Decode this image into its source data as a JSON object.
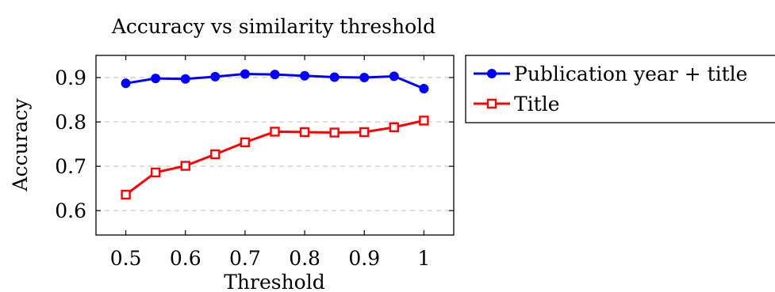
{
  "chart_data": {
    "type": "line",
    "title": "Accuracy vs similarity threshold",
    "xlabel": "Threshold",
    "ylabel": "Accuracy",
    "x": [
      0.5,
      0.55,
      0.6,
      0.65,
      0.7,
      0.75,
      0.8,
      0.85,
      0.9,
      0.95,
      1.0
    ],
    "xlim": [
      0.45,
      1.05
    ],
    "ylim": [
      0.545,
      0.95
    ],
    "xticks": [
      0.5,
      0.6,
      0.7,
      0.8,
      0.9,
      1.0
    ],
    "xtick_labels": [
      "0.5",
      "0.6",
      "0.7",
      "0.8",
      "0.9",
      "1"
    ],
    "yticks": [
      0.6,
      0.7,
      0.8,
      0.9
    ],
    "ytick_labels": [
      "0.6",
      "0.7",
      "0.8",
      "0.9"
    ],
    "grid": "horizontal-dashed",
    "legend_position": "outside-right-top",
    "series": [
      {
        "name": "Publication year + title",
        "color": "#0000ff",
        "marker": "filled-circle",
        "values": [
          0.887,
          0.898,
          0.897,
          0.902,
          0.908,
          0.907,
          0.904,
          0.901,
          0.9,
          0.903,
          0.875
        ]
      },
      {
        "name": "Title",
        "color": "#ff0000",
        "marker": "open-square",
        "values": [
          0.636,
          0.686,
          0.701,
          0.727,
          0.754,
          0.778,
          0.777,
          0.776,
          0.777,
          0.788,
          0.803
        ]
      }
    ]
  }
}
